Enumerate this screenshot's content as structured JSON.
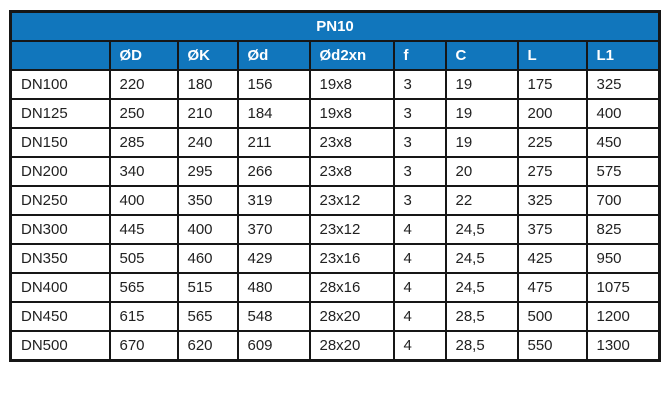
{
  "table": {
    "title": "PN10",
    "columns": [
      "",
      "ØD",
      "ØK",
      "Ød",
      "Ød2xn",
      "f",
      "C",
      "L",
      "L1"
    ],
    "rows": [
      {
        "label": "DN100",
        "values": [
          "220",
          "180",
          "156",
          "19x8",
          "3",
          "19",
          "175",
          "325"
        ]
      },
      {
        "label": "DN125",
        "values": [
          "250",
          "210",
          "184",
          "19x8",
          "3",
          "19",
          "200",
          "400"
        ]
      },
      {
        "label": "DN150",
        "values": [
          "285",
          "240",
          "211",
          "23x8",
          "3",
          "19",
          "225",
          "450"
        ]
      },
      {
        "label": "DN200",
        "values": [
          "340",
          "295",
          "266",
          "23x8",
          "3",
          "20",
          "275",
          "575"
        ]
      },
      {
        "label": "DN250",
        "values": [
          "400",
          "350",
          "319",
          "23x12",
          "3",
          "22",
          "325",
          "700"
        ]
      },
      {
        "label": "DN300",
        "values": [
          "445",
          "400",
          "370",
          "23x12",
          "4",
          "24,5",
          "375",
          "825"
        ]
      },
      {
        "label": "DN350",
        "values": [
          "505",
          "460",
          "429",
          "23x16",
          "4",
          "24,5",
          "425",
          "950"
        ]
      },
      {
        "label": "DN400",
        "values": [
          "565",
          "515",
          "480",
          "28x16",
          "4",
          "24,5",
          "475",
          "1075"
        ]
      },
      {
        "label": "DN450",
        "values": [
          "615",
          "565",
          "548",
          "28x20",
          "4",
          "28,5",
          "500",
          "1200"
        ]
      },
      {
        "label": "DN500",
        "values": [
          "670",
          "620",
          "609",
          "28x20",
          "4",
          "28,5",
          "550",
          "1300"
        ]
      }
    ],
    "colors": {
      "header_bg": "#1176BC",
      "header_text": "#FFFFFF",
      "border": "#161616",
      "body_text": "#212121",
      "page_bg": "#FFFFFF"
    }
  }
}
